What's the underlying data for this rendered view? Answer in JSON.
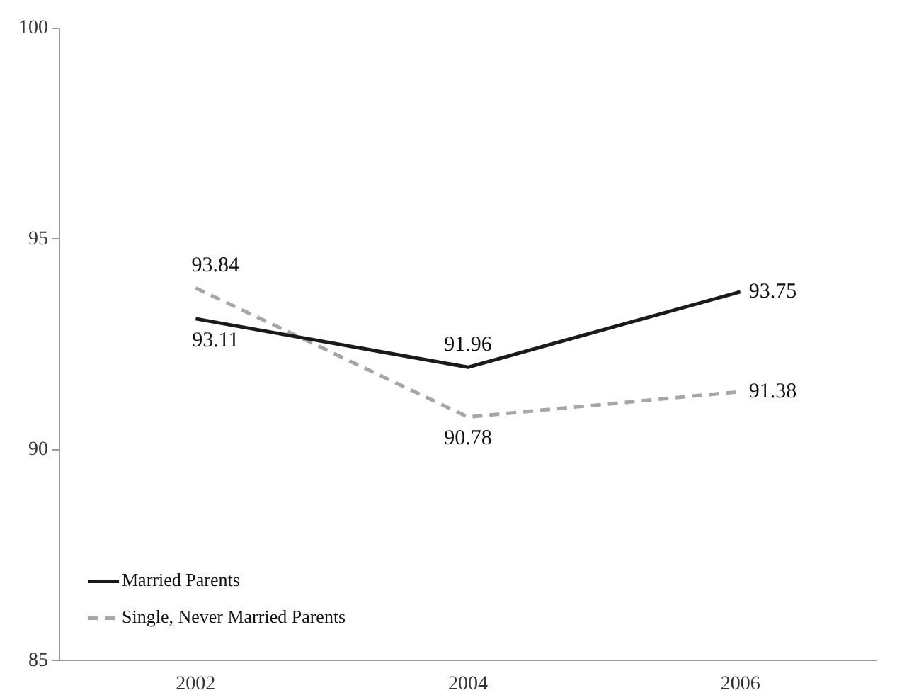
{
  "chart_data": {
    "type": "line",
    "categories": [
      "2002",
      "2004",
      "2006"
    ],
    "series": [
      {
        "name": "Married Parents",
        "color": "#1a1a1a",
        "values": [
          93.11,
          91.96,
          93.75
        ],
        "line_style": "solid"
      },
      {
        "name": "Single, Never Married Parents",
        "color": "#a6a6a6",
        "values": [
          93.84,
          90.78,
          91.38
        ],
        "line_style": "dashed"
      }
    ],
    "ylim": [
      85,
      100
    ],
    "yticks": [
      85,
      90,
      95,
      100
    ],
    "grid": false,
    "legend": "bottom left",
    "marker": "none",
    "data_labels": true
  }
}
